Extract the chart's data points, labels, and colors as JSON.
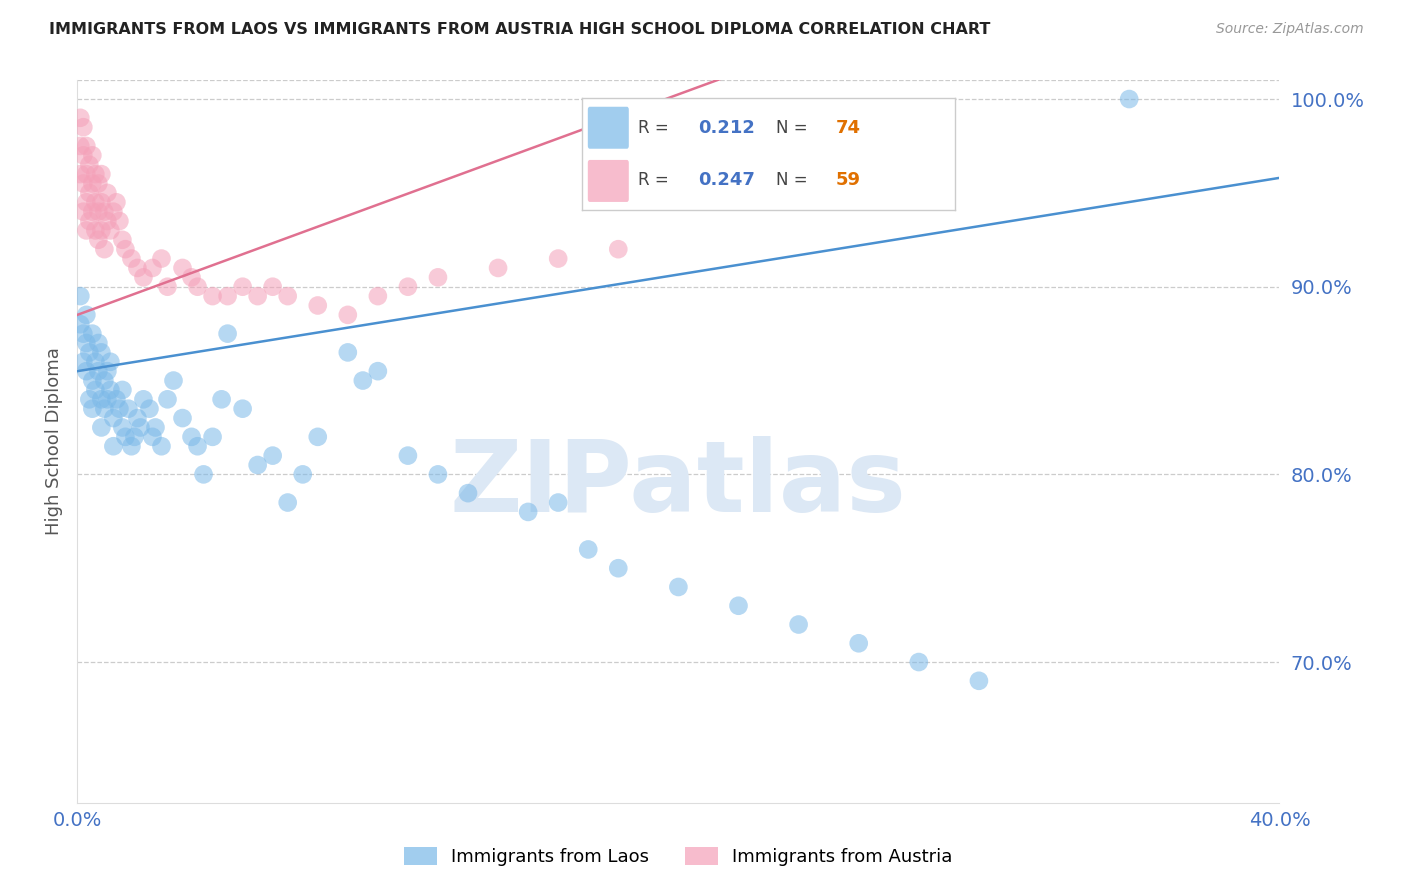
{
  "title": "IMMIGRANTS FROM LAOS VS IMMIGRANTS FROM AUSTRIA HIGH SCHOOL DIPLOMA CORRELATION CHART",
  "source": "Source: ZipAtlas.com",
  "ylabel": "High School Diploma",
  "x_min": 0.0,
  "x_max": 0.4,
  "y_min": 0.625,
  "y_max": 1.01,
  "y_ticks_right": [
    0.7,
    0.8,
    0.9,
    1.0
  ],
  "y_tick_labels_right": [
    "70.0%",
    "80.0%",
    "90.0%",
    "100.0%"
  ],
  "laos_color": "#7ab8e8",
  "austria_color": "#f4a0b8",
  "laos_line_color": "#4a90d0",
  "austria_line_color": "#e07090",
  "laos_R": 0.212,
  "laos_N": 74,
  "austria_R": 0.247,
  "austria_N": 59,
  "watermark": "ZIPatlas",
  "watermark_color": "#dce8f5",
  "laos_x": [
    0.001,
    0.001,
    0.002,
    0.002,
    0.003,
    0.003,
    0.003,
    0.004,
    0.004,
    0.005,
    0.005,
    0.005,
    0.006,
    0.006,
    0.007,
    0.007,
    0.008,
    0.008,
    0.008,
    0.009,
    0.009,
    0.01,
    0.01,
    0.011,
    0.011,
    0.012,
    0.012,
    0.013,
    0.014,
    0.015,
    0.015,
    0.016,
    0.017,
    0.018,
    0.019,
    0.02,
    0.021,
    0.022,
    0.024,
    0.025,
    0.026,
    0.028,
    0.03,
    0.032,
    0.035,
    0.038,
    0.04,
    0.042,
    0.045,
    0.048,
    0.05,
    0.055,
    0.06,
    0.065,
    0.07,
    0.075,
    0.08,
    0.09,
    0.095,
    0.1,
    0.11,
    0.12,
    0.13,
    0.15,
    0.16,
    0.17,
    0.18,
    0.2,
    0.22,
    0.24,
    0.26,
    0.28,
    0.3,
    0.35
  ],
  "laos_y": [
    0.88,
    0.895,
    0.875,
    0.86,
    0.885,
    0.87,
    0.855,
    0.865,
    0.84,
    0.875,
    0.85,
    0.835,
    0.86,
    0.845,
    0.87,
    0.855,
    0.865,
    0.84,
    0.825,
    0.85,
    0.835,
    0.855,
    0.84,
    0.86,
    0.845,
    0.83,
    0.815,
    0.84,
    0.835,
    0.825,
    0.845,
    0.82,
    0.835,
    0.815,
    0.82,
    0.83,
    0.825,
    0.84,
    0.835,
    0.82,
    0.825,
    0.815,
    0.84,
    0.85,
    0.83,
    0.82,
    0.815,
    0.8,
    0.82,
    0.84,
    0.875,
    0.835,
    0.805,
    0.81,
    0.785,
    0.8,
    0.82,
    0.865,
    0.85,
    0.855,
    0.81,
    0.8,
    0.79,
    0.78,
    0.785,
    0.76,
    0.75,
    0.74,
    0.73,
    0.72,
    0.71,
    0.7,
    0.69,
    1.0
  ],
  "austria_x": [
    0.001,
    0.001,
    0.001,
    0.002,
    0.002,
    0.002,
    0.002,
    0.003,
    0.003,
    0.003,
    0.003,
    0.004,
    0.004,
    0.004,
    0.005,
    0.005,
    0.005,
    0.006,
    0.006,
    0.006,
    0.007,
    0.007,
    0.007,
    0.008,
    0.008,
    0.008,
    0.009,
    0.009,
    0.01,
    0.01,
    0.011,
    0.012,
    0.013,
    0.014,
    0.015,
    0.016,
    0.018,
    0.02,
    0.022,
    0.025,
    0.028,
    0.03,
    0.035,
    0.038,
    0.04,
    0.045,
    0.05,
    0.055,
    0.06,
    0.065,
    0.07,
    0.08,
    0.09,
    0.1,
    0.11,
    0.12,
    0.14,
    0.16,
    0.18
  ],
  "austria_y": [
    0.99,
    0.975,
    0.96,
    0.985,
    0.97,
    0.955,
    0.94,
    0.975,
    0.96,
    0.945,
    0.93,
    0.965,
    0.95,
    0.935,
    0.97,
    0.955,
    0.94,
    0.96,
    0.945,
    0.93,
    0.955,
    0.94,
    0.925,
    0.96,
    0.945,
    0.93,
    0.94,
    0.92,
    0.95,
    0.935,
    0.93,
    0.94,
    0.945,
    0.935,
    0.925,
    0.92,
    0.915,
    0.91,
    0.905,
    0.91,
    0.915,
    0.9,
    0.91,
    0.905,
    0.9,
    0.895,
    0.895,
    0.9,
    0.895,
    0.9,
    0.895,
    0.89,
    0.885,
    0.895,
    0.9,
    0.905,
    0.91,
    0.915,
    0.92
  ]
}
